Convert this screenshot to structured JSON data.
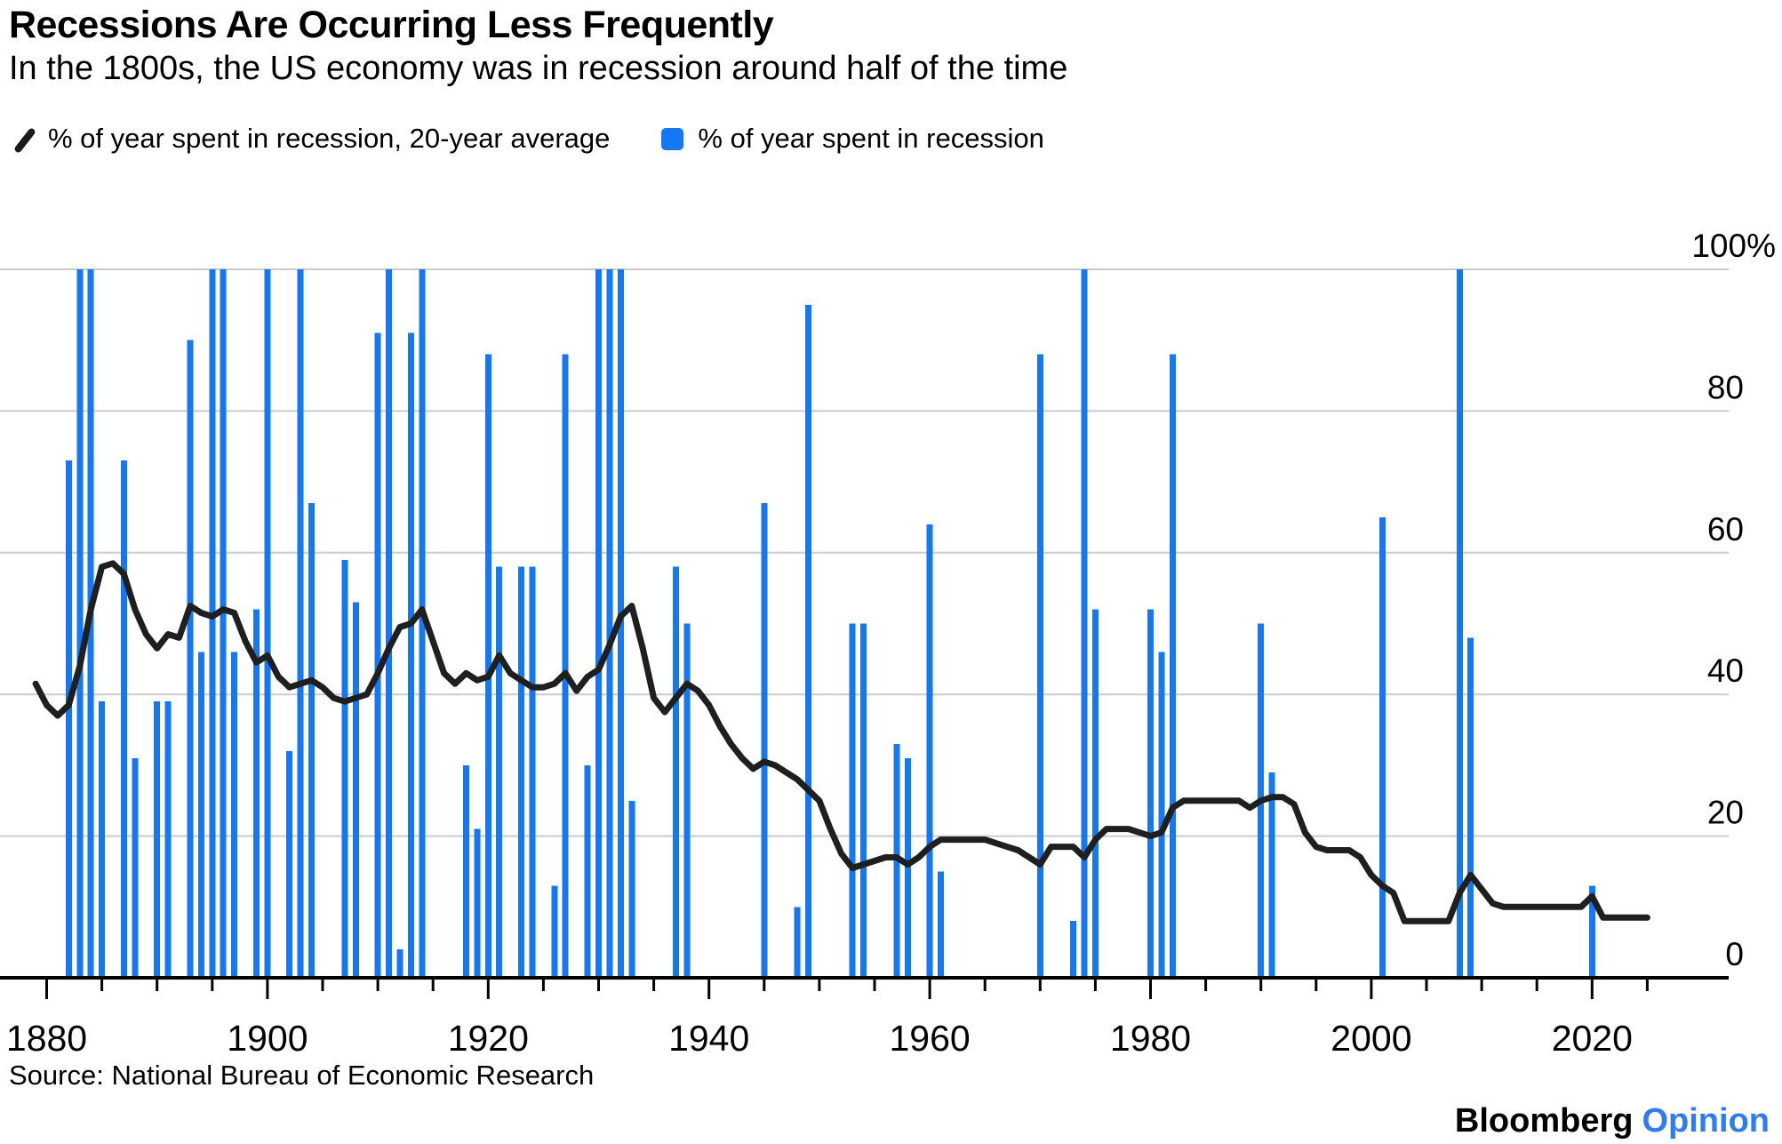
{
  "title": "Recessions Are Occurring Less Frequently",
  "subtitle": "In the 1800s, the US economy was in recession around half of the time",
  "legend": {
    "line_label": "% of year spent in recession, 20-year average",
    "bar_label": "% of year spent in recession"
  },
  "source": "Source: National Bureau of Economic Research",
  "brand": {
    "name": "Bloomberg",
    "suffix": "Opinion"
  },
  "colors": {
    "bar": "#1677F3",
    "line": "#1F1F1F",
    "grid": "#CBCBCB",
    "axis": "#000000",
    "opinion_blue": "#2E7BF6",
    "background": "#FFFFFF"
  },
  "chart_data": {
    "type": "bar",
    "title": "Recessions Are Occurring Less Frequently",
    "xlabel": "",
    "ylabel": "% of year spent in recession",
    "x_axis": {
      "range": [
        1880,
        2026
      ],
      "tick_step": 5,
      "labeled_ticks": [
        1880,
        1900,
        1920,
        1940,
        1960,
        1980,
        2000,
        2020
      ]
    },
    "y_axis": {
      "range": [
        0,
        100
      ],
      "ticks": [
        0,
        20,
        40,
        60,
        80,
        100
      ],
      "top_label": "100%",
      "grid": true,
      "labels_side": "right"
    },
    "series": [
      {
        "name": "% of year spent in recession",
        "type": "bar",
        "values_by_year": {
          "1882": 73,
          "1883": 100,
          "1884": 100,
          "1885": 39,
          "1887": 73,
          "1888": 31,
          "1890": 39,
          "1891": 39,
          "1893": 90,
          "1894": 46,
          "1895": 100,
          "1896": 100,
          "1897": 46,
          "1899": 52,
          "1900": 100,
          "1902": 32,
          "1903": 100,
          "1904": 67,
          "1907": 59,
          "1908": 53,
          "1910": 91,
          "1911": 100,
          "1912": 4,
          "1913": 91,
          "1914": 100,
          "1918": 30,
          "1919": 21,
          "1920": 88,
          "1921": 58,
          "1923": 58,
          "1924": 58,
          "1926": 13,
          "1927": 88,
          "1929": 30,
          "1930": 100,
          "1931": 100,
          "1932": 100,
          "1933": 25,
          "1937": 58,
          "1938": 50,
          "1945": 67,
          "1948": 10,
          "1949": 95,
          "1953": 50,
          "1954": 50,
          "1957": 33,
          "1958": 31,
          "1960": 64,
          "1961": 15,
          "1970": 88,
          "1973": 8,
          "1974": 100,
          "1975": 52,
          "1980": 52,
          "1981": 46,
          "1982": 88,
          "1990": 50,
          "1991": 29,
          "2001": 65,
          "2008": 100,
          "2009": 48,
          "2020": 13
        }
      },
      {
        "name": "% of year spent in recession, 20-year average",
        "type": "line",
        "points": [
          [
            1879,
            41.5
          ],
          [
            1880,
            38.5
          ],
          [
            1881,
            37
          ],
          [
            1882,
            38.5
          ],
          [
            1883,
            44
          ],
          [
            1884,
            52
          ],
          [
            1885,
            58
          ],
          [
            1886,
            58.5
          ],
          [
            1887,
            57
          ],
          [
            1888,
            52
          ],
          [
            1889,
            48.5
          ],
          [
            1890,
            46.5
          ],
          [
            1891,
            48.5
          ],
          [
            1892,
            48
          ],
          [
            1893,
            52.5
          ],
          [
            1894,
            51.5
          ],
          [
            1895,
            51
          ],
          [
            1896,
            52
          ],
          [
            1897,
            51.5
          ],
          [
            1898,
            47.5
          ],
          [
            1899,
            44.5
          ],
          [
            1900,
            45.5
          ],
          [
            1901,
            42.5
          ],
          [
            1902,
            41
          ],
          [
            1903,
            41.5
          ],
          [
            1904,
            42
          ],
          [
            1905,
            41
          ],
          [
            1906,
            39.5
          ],
          [
            1907,
            39
          ],
          [
            1908,
            39.5
          ],
          [
            1909,
            40
          ],
          [
            1910,
            43
          ],
          [
            1911,
            46.5
          ],
          [
            1912,
            49.5
          ],
          [
            1913,
            50
          ],
          [
            1914,
            52
          ],
          [
            1915,
            47.5
          ],
          [
            1916,
            43
          ],
          [
            1917,
            41.5
          ],
          [
            1918,
            43
          ],
          [
            1919,
            42
          ],
          [
            1920,
            42.5
          ],
          [
            1921,
            45.5
          ],
          [
            1922,
            43
          ],
          [
            1923,
            42
          ],
          [
            1924,
            41
          ],
          [
            1925,
            41
          ],
          [
            1926,
            41.5
          ],
          [
            1927,
            43
          ],
          [
            1928,
            40.5
          ],
          [
            1929,
            42.5
          ],
          [
            1930,
            43.5
          ],
          [
            1931,
            47
          ],
          [
            1932,
            51
          ],
          [
            1933,
            52.5
          ],
          [
            1934,
            46.5
          ],
          [
            1935,
            39.5
          ],
          [
            1936,
            37.5
          ],
          [
            1937,
            39.5
          ],
          [
            1938,
            41.5
          ],
          [
            1939,
            40.5
          ],
          [
            1940,
            38.5
          ],
          [
            1941,
            35.5
          ],
          [
            1942,
            33
          ],
          [
            1943,
            31
          ],
          [
            1944,
            29.5
          ],
          [
            1945,
            30.5
          ],
          [
            1946,
            30
          ],
          [
            1947,
            29
          ],
          [
            1948,
            28
          ],
          [
            1949,
            26.5
          ],
          [
            1950,
            25
          ],
          [
            1951,
            21
          ],
          [
            1952,
            17.5
          ],
          [
            1953,
            15.5
          ],
          [
            1954,
            16
          ],
          [
            1955,
            16.5
          ],
          [
            1956,
            17
          ],
          [
            1957,
            17
          ],
          [
            1958,
            16
          ],
          [
            1959,
            17
          ],
          [
            1960,
            18.5
          ],
          [
            1961,
            19.5
          ],
          [
            1962,
            19.5
          ],
          [
            1963,
            19.5
          ],
          [
            1964,
            19.5
          ],
          [
            1965,
            19.5
          ],
          [
            1966,
            19
          ],
          [
            1967,
            18.5
          ],
          [
            1968,
            18
          ],
          [
            1969,
            17
          ],
          [
            1970,
            16
          ],
          [
            1971,
            18.5
          ],
          [
            1972,
            18.5
          ],
          [
            1973,
            18.5
          ],
          [
            1974,
            17
          ],
          [
            1975,
            19.5
          ],
          [
            1976,
            21
          ],
          [
            1977,
            21
          ],
          [
            1978,
            21
          ],
          [
            1979,
            20.5
          ],
          [
            1980,
            20
          ],
          [
            1981,
            20.5
          ],
          [
            1982,
            24
          ],
          [
            1983,
            25
          ],
          [
            1984,
            25
          ],
          [
            1985,
            25
          ],
          [
            1986,
            25
          ],
          [
            1987,
            25
          ],
          [
            1988,
            25
          ],
          [
            1989,
            24
          ],
          [
            1990,
            25
          ],
          [
            1991,
            25.5
          ],
          [
            1992,
            25.5
          ],
          [
            1993,
            24.5
          ],
          [
            1994,
            20.5
          ],
          [
            1995,
            18.5
          ],
          [
            1996,
            18
          ],
          [
            1997,
            18
          ],
          [
            1998,
            18
          ],
          [
            1999,
            17
          ],
          [
            2000,
            14.5
          ],
          [
            2001,
            13
          ],
          [
            2002,
            12
          ],
          [
            2003,
            8
          ],
          [
            2004,
            8
          ],
          [
            2005,
            8
          ],
          [
            2006,
            8
          ],
          [
            2007,
            8
          ],
          [
            2008,
            12
          ],
          [
            2009,
            14.5
          ],
          [
            2010,
            12.5
          ],
          [
            2011,
            10.5
          ],
          [
            2012,
            10
          ],
          [
            2013,
            10
          ],
          [
            2014,
            10
          ],
          [
            2015,
            10
          ],
          [
            2016,
            10
          ],
          [
            2017,
            10
          ],
          [
            2018,
            10
          ],
          [
            2019,
            10
          ],
          [
            2020,
            11.5
          ],
          [
            2021,
            8.5
          ],
          [
            2022,
            8.5
          ],
          [
            2023,
            8.5
          ],
          [
            2024,
            8.5
          ],
          [
            2025,
            8.5
          ]
        ]
      }
    ]
  }
}
